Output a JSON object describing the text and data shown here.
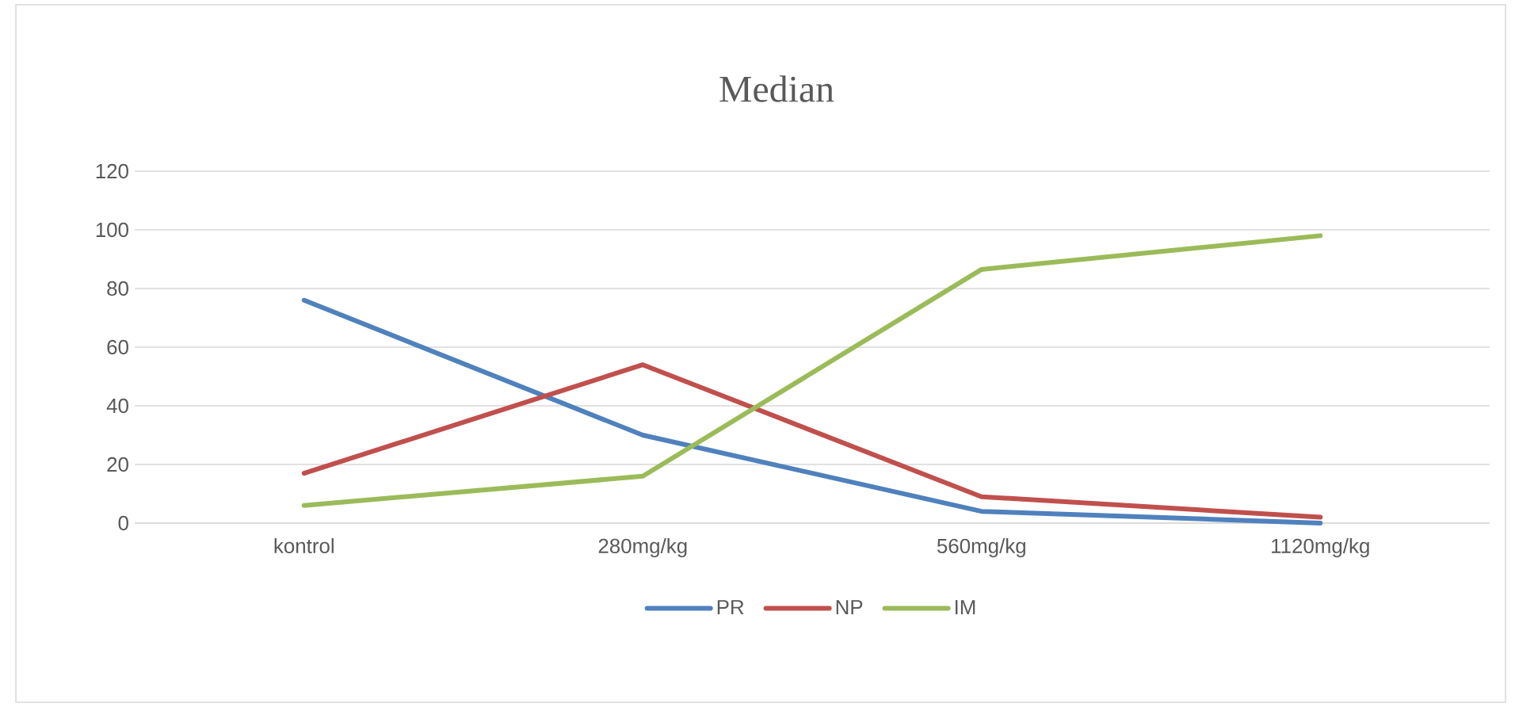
{
  "chart_data": {
    "type": "line",
    "title": "Median",
    "categories": [
      "kontrol",
      "280mg/kg",
      "560mg/kg",
      "1120mg/kg"
    ],
    "series": [
      {
        "name": "PR",
        "color": "#4f81bd",
        "values": [
          76,
          30,
          4,
          0
        ]
      },
      {
        "name": "NP",
        "color": "#c0504d",
        "values": [
          17,
          54,
          9,
          2
        ]
      },
      {
        "name": "IM",
        "color": "#9bbb59",
        "values": [
          6,
          16,
          86.5,
          98
        ]
      }
    ],
    "ylim": [
      0,
      120
    ],
    "yticks": [
      0,
      20,
      40,
      60,
      80,
      100,
      120
    ],
    "grid": "y",
    "legend": "bottom",
    "marker": "none",
    "line_style": "solid"
  }
}
